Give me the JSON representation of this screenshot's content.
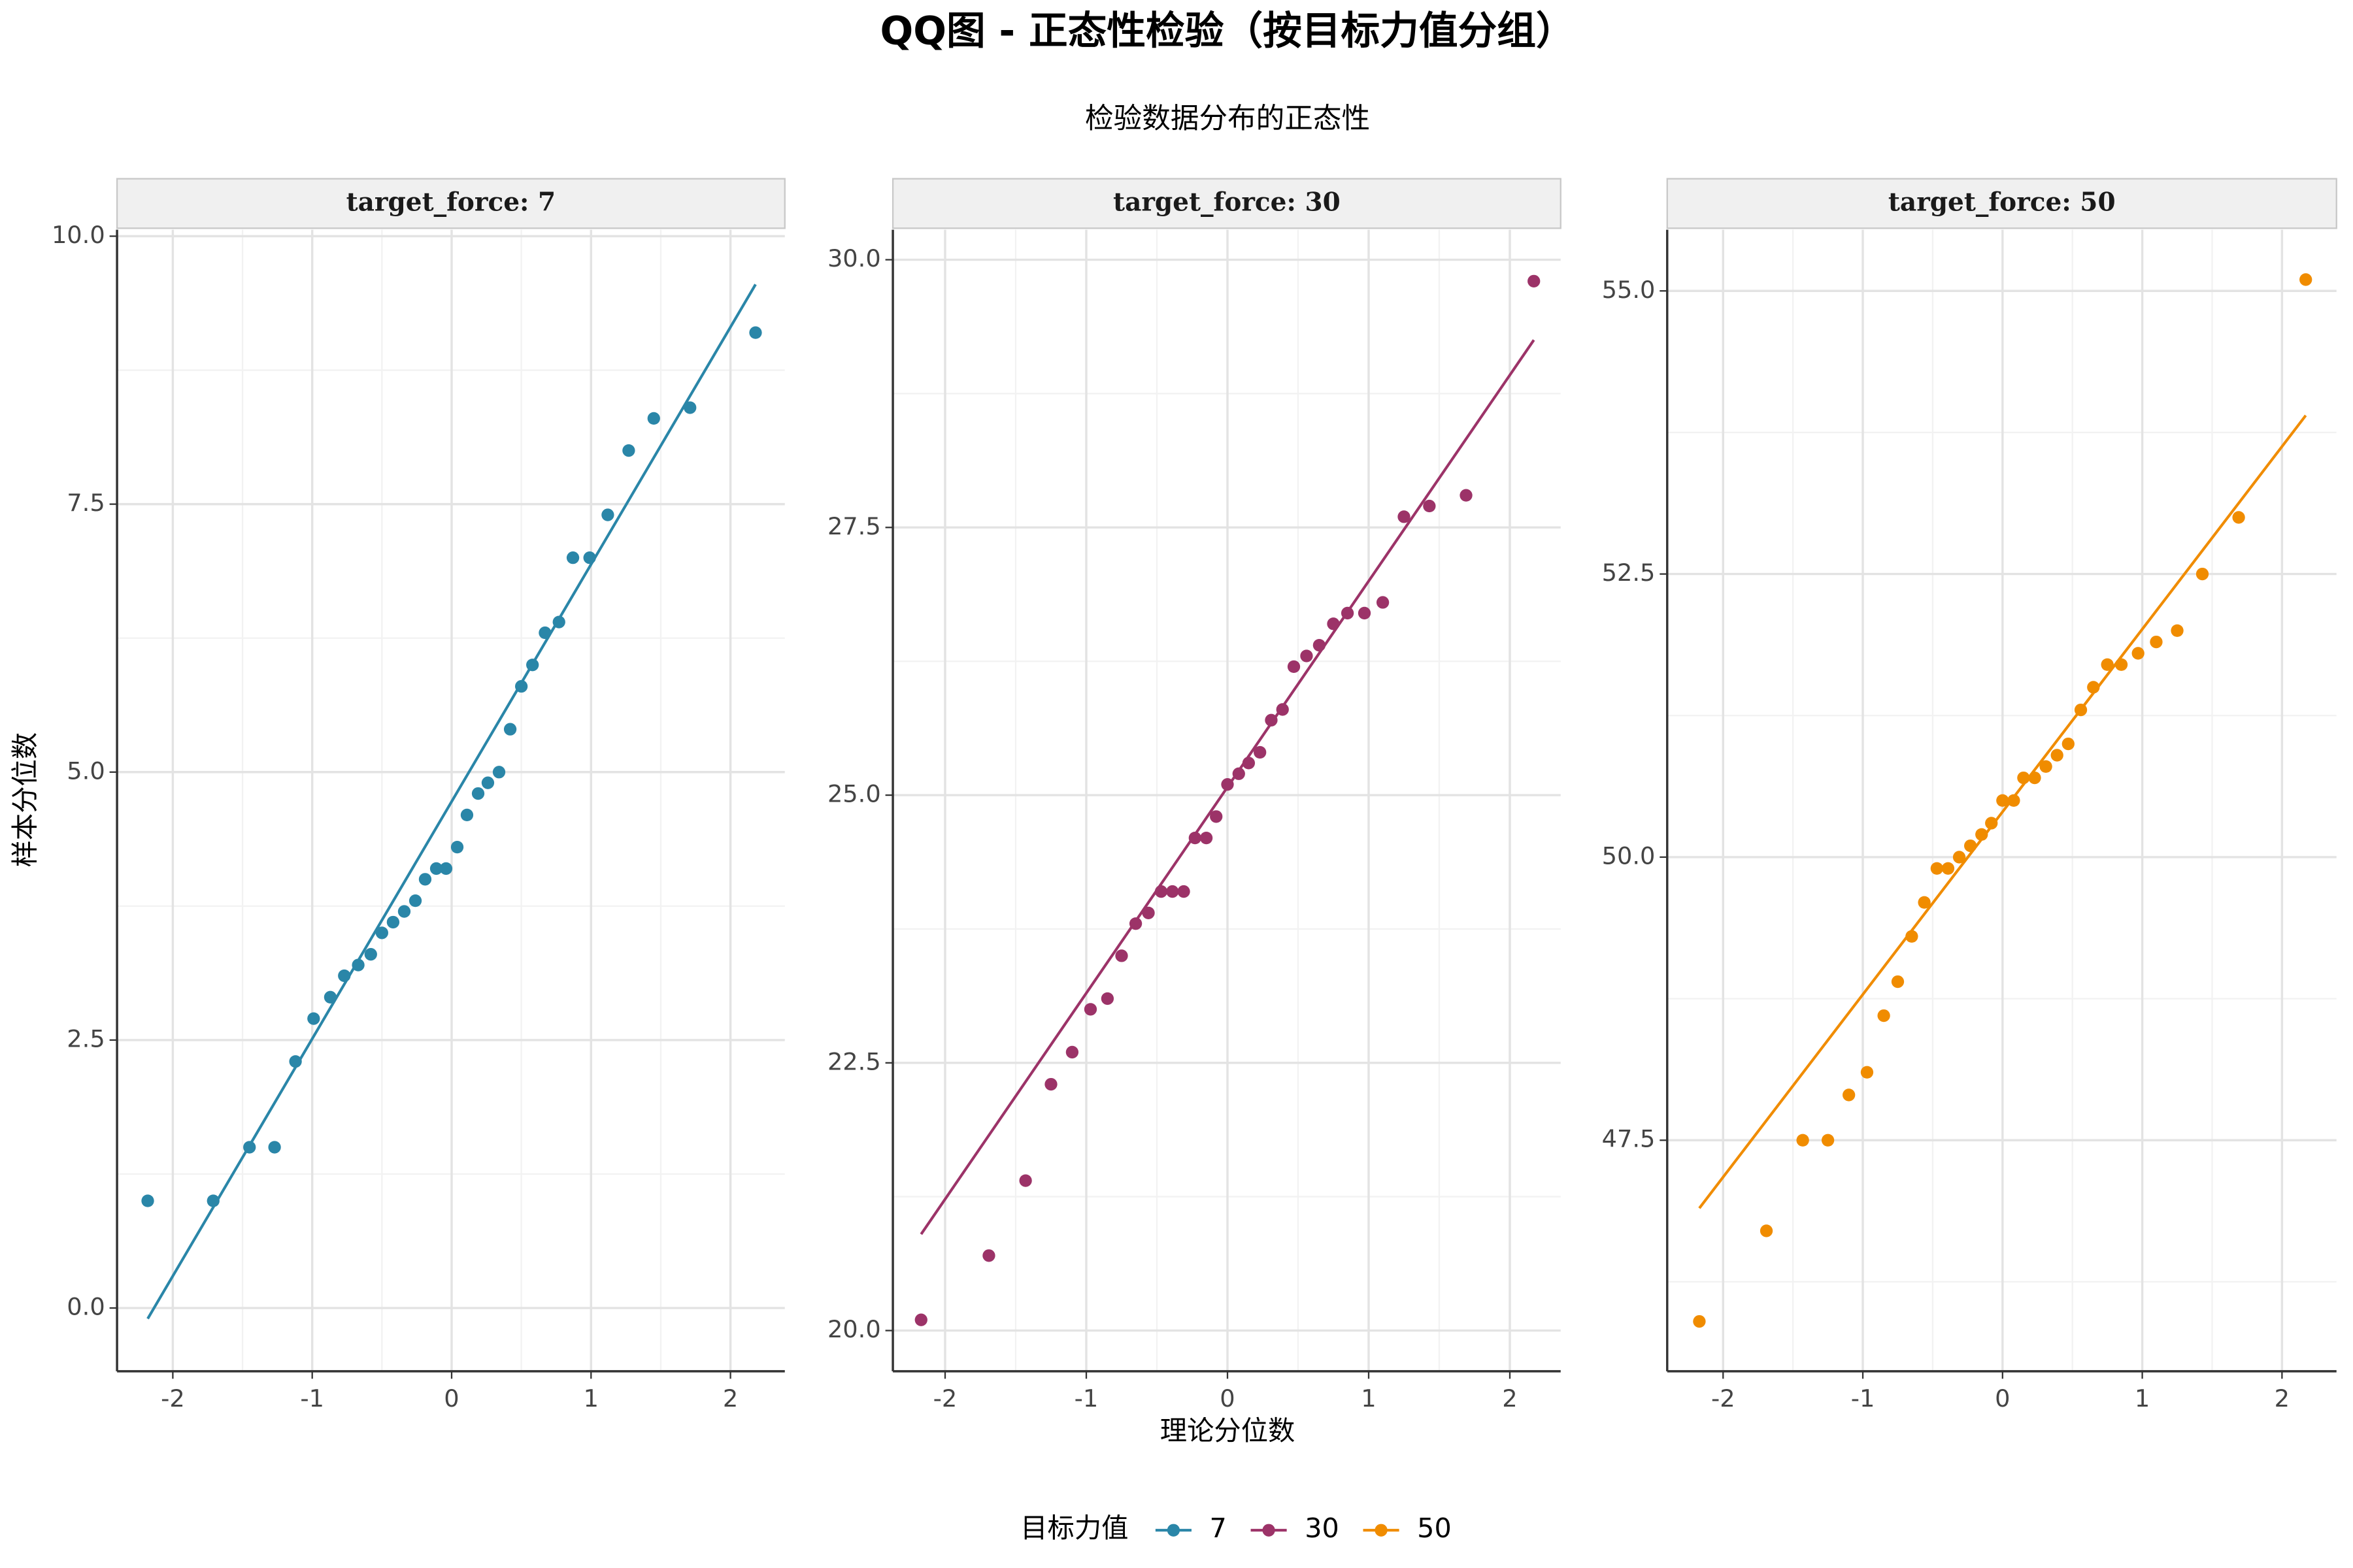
{
  "chart_data": {
    "type": "qq",
    "title": "QQ图 - 正态性检验（按目标力值分组）",
    "subtitle": "检验数据分布的正态性",
    "xlabel": "理论分位数",
    "ylabel": "样本分位数",
    "legend_title": "目标力值",
    "legend_position": "bottom",
    "grid": true,
    "facets": [
      {
        "strip": "target_force: 7",
        "name": "7",
        "color": "#2a86a8",
        "x": [
          -2.18,
          -1.71,
          -1.45,
          -1.27,
          -1.12,
          -0.99,
          -0.87,
          -0.77,
          -0.67,
          -0.58,
          -0.5,
          -0.42,
          -0.34,
          -0.26,
          -0.19,
          -0.11,
          -0.04,
          0.04,
          0.11,
          0.19,
          0.26,
          0.34,
          0.42,
          0.5,
          0.58,
          0.67,
          0.77,
          0.87,
          0.99,
          1.12,
          1.27,
          1.45,
          1.71,
          2.18
        ],
        "values": [
          1.0,
          1.0,
          1.5,
          1.5,
          2.3,
          2.7,
          2.9,
          3.1,
          3.2,
          3.3,
          3.5,
          3.6,
          3.7,
          3.8,
          4.0,
          4.1,
          4.1,
          4.3,
          4.6,
          4.8,
          4.9,
          5.0,
          5.4,
          5.8,
          6.0,
          6.3,
          6.4,
          7.0,
          7.0,
          7.4,
          8.0,
          8.3,
          8.4,
          9.1
        ],
        "line_x": [
          -2.18,
          2.18
        ],
        "line_y": [
          -0.1,
          9.55
        ],
        "xlim": [
          -2.4,
          2.39
        ],
        "ylim": [
          -0.59,
          10.06
        ],
        "xticks": [
          -2,
          -1,
          0,
          1,
          2
        ],
        "yticks": [
          {
            "value": 0,
            "label": "0.0"
          },
          {
            "value": 2.5,
            "label": "2.5"
          },
          {
            "value": 5,
            "label": "5.0"
          },
          {
            "value": 7.5,
            "label": "7.5"
          },
          {
            "value": 10,
            "label": "10.0"
          }
        ],
        "minor_xticks": [
          -1.5,
          -0.5,
          0.5,
          1.5
        ],
        "minor_yticks": [
          1.25,
          3.75,
          6.25,
          8.75
        ]
      },
      {
        "strip": "target_force: 30",
        "name": "30",
        "color": "#9c3368",
        "x": [
          -2.17,
          -1.69,
          -1.43,
          -1.25,
          -1.1,
          -0.97,
          -0.85,
          -0.75,
          -0.65,
          -0.56,
          -0.47,
          -0.39,
          -0.31,
          -0.23,
          -0.15,
          -0.08,
          0,
          0.08,
          0.15,
          0.23,
          0.31,
          0.39,
          0.47,
          0.56,
          0.65,
          0.75,
          0.85,
          0.97,
          1.1,
          1.25,
          1.43,
          1.69,
          2.17
        ],
        "values": [
          20.1,
          20.7,
          21.4,
          22.3,
          22.6,
          23.0,
          23.1,
          23.5,
          23.8,
          23.9,
          24.1,
          24.1,
          24.1,
          24.6,
          24.6,
          24.8,
          25.1,
          25.2,
          25.3,
          25.4,
          25.7,
          25.8,
          26.2,
          26.3,
          26.4,
          26.6,
          26.7,
          26.7,
          26.8,
          27.6,
          27.7,
          27.8,
          29.8
        ],
        "line_x": [
          -2.17,
          2.17
        ],
        "line_y": [
          20.9,
          29.25
        ],
        "xlim": [
          -2.37,
          2.36
        ],
        "ylim": [
          19.62,
          30.28
        ],
        "xticks": [
          -2,
          -1,
          0,
          1,
          2
        ],
        "yticks": [
          {
            "value": 20,
            "label": "20.0"
          },
          {
            "value": 22.5,
            "label": "22.5"
          },
          {
            "value": 25,
            "label": "25.0"
          },
          {
            "value": 27.5,
            "label": "27.5"
          },
          {
            "value": 30,
            "label": "30.0"
          }
        ],
        "minor_xticks": [
          -1.5,
          -0.5,
          0.5,
          1.5
        ],
        "minor_yticks": [
          21.25,
          23.75,
          26.25,
          28.75
        ]
      },
      {
        "strip": "target_force: 50",
        "name": "50",
        "color": "#f08c00",
        "x": [
          -2.17,
          -1.69,
          -1.43,
          -1.25,
          -1.1,
          -0.97,
          -0.85,
          -0.75,
          -0.65,
          -0.56,
          -0.47,
          -0.39,
          -0.31,
          -0.23,
          -0.15,
          -0.08,
          0,
          0.08,
          0.15,
          0.23,
          0.31,
          0.39,
          0.47,
          0.56,
          0.65,
          0.75,
          0.85,
          0.97,
          1.1,
          1.25,
          1.43,
          1.69,
          2.17
        ],
        "values": [
          45.9,
          46.7,
          47.5,
          47.5,
          47.9,
          48.1,
          48.6,
          48.9,
          49.3,
          49.6,
          49.9,
          49.9,
          50.0,
          50.1,
          50.2,
          50.3,
          50.5,
          50.5,
          50.7,
          50.7,
          50.8,
          50.9,
          51.0,
          51.3,
          51.5,
          51.7,
          51.7,
          51.8,
          51.9,
          52.0,
          52.5,
          53.0,
          55.1
        ],
        "line_x": [
          -2.17,
          2.17
        ],
        "line_y": [
          46.9,
          53.9
        ],
        "xlim": [
          -2.4,
          2.39
        ],
        "ylim": [
          45.46,
          55.54
        ],
        "xticks": [
          -2,
          -1,
          0,
          1,
          2
        ],
        "yticks": [
          {
            "value": 47.5,
            "label": "47.5"
          },
          {
            "value": 50,
            "label": "50.0"
          },
          {
            "value": 52.5,
            "label": "52.5"
          },
          {
            "value": 55,
            "label": "55.0"
          }
        ],
        "minor_xticks": [
          -1.5,
          -0.5,
          0.5,
          1.5
        ],
        "minor_yticks": [
          46.25,
          48.75,
          51.25,
          53.75
        ]
      }
    ]
  }
}
